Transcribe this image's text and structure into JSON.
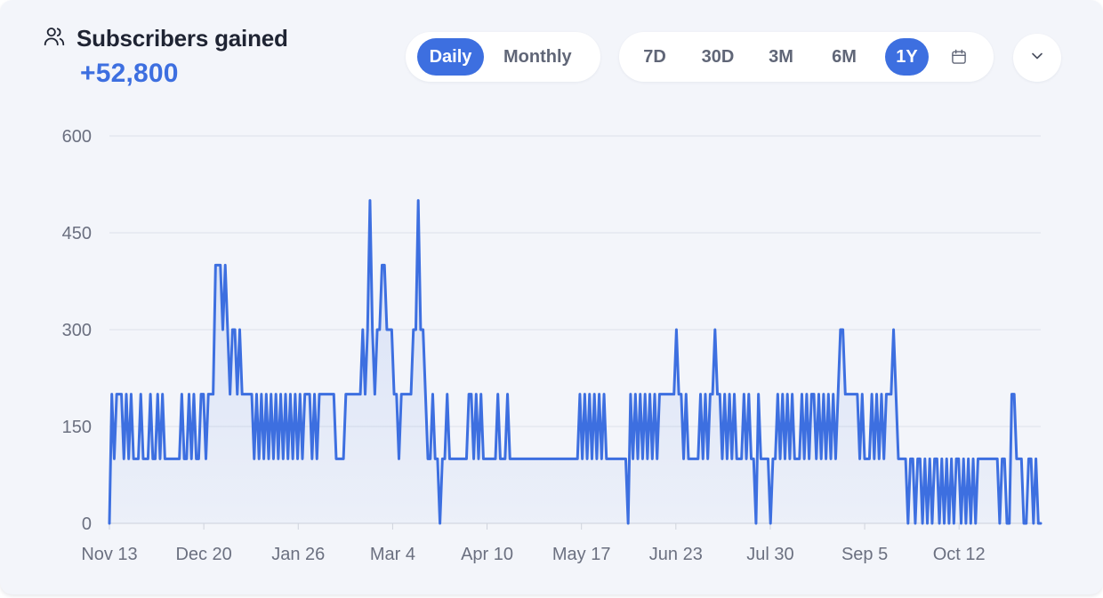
{
  "header": {
    "icon": "users-icon",
    "title": "Subscribers gained",
    "total": "+52,800"
  },
  "mode_toggle": {
    "options": [
      "Daily",
      "Monthly"
    ],
    "selected": "Daily"
  },
  "range_toggle": {
    "options": [
      "7D",
      "30D",
      "3M",
      "6M",
      "1Y"
    ],
    "selected": "1Y",
    "calendar_icon": "calendar-icon"
  },
  "menu": {
    "icon": "chevron-down-icon"
  },
  "colors": {
    "accent": "#3d6fe0",
    "grid": "#dde1ea",
    "text_muted": "#6b7080"
  },
  "chart_data": {
    "type": "area",
    "title": "Subscribers gained",
    "ylim": [
      0,
      600
    ],
    "yticks": [
      0,
      150,
      300,
      450,
      600
    ],
    "x_tick_labels": [
      "Nov 13",
      "Dec 20",
      "Jan 26",
      "Mar 4",
      "Apr 10",
      "May 17",
      "Jun 23",
      "Jul 30",
      "Sep 5",
      "Oct 12"
    ],
    "x_tick_day_index": [
      0,
      37,
      74,
      111,
      148,
      185,
      222,
      259,
      296,
      333
    ],
    "x_range_days": [
      0,
      365
    ],
    "series": [
      {
        "name": "Subscribers gained",
        "values": [
          0,
          200,
          100,
          200,
          200,
          200,
          100,
          200,
          100,
          200,
          100,
          100,
          100,
          200,
          100,
          100,
          100,
          200,
          100,
          100,
          200,
          100,
          200,
          100,
          100,
          100,
          100,
          100,
          100,
          100,
          200,
          100,
          100,
          200,
          100,
          200,
          100,
          100,
          200,
          200,
          100,
          200,
          200,
          200,
          400,
          400,
          400,
          300,
          400,
          300,
          200,
          300,
          300,
          200,
          300,
          200,
          200,
          200,
          200,
          200,
          100,
          200,
          100,
          200,
          100,
          200,
          100,
          200,
          100,
          200,
          100,
          200,
          100,
          200,
          100,
          200,
          100,
          200,
          100,
          200,
          100,
          200,
          200,
          200,
          100,
          200,
          100,
          200,
          200,
          200,
          200,
          200,
          200,
          200,
          100,
          100,
          100,
          100,
          200,
          200,
          200,
          200,
          200,
          200,
          200,
          300,
          200,
          300,
          500,
          300,
          200,
          300,
          300,
          400,
          400,
          300,
          300,
          300,
          200,
          200,
          100,
          200,
          200,
          200,
          200,
          200,
          300,
          300,
          500,
          300,
          300,
          200,
          100,
          100,
          200,
          100,
          100,
          0,
          100,
          100,
          200,
          100,
          100,
          100,
          100,
          100,
          100,
          100,
          100,
          200,
          200,
          100,
          200,
          100,
          200,
          100,
          100,
          100,
          100,
          100,
          100,
          200,
          100,
          100,
          100,
          200,
          100,
          100,
          100,
          100,
          100,
          100,
          100,
          100,
          100,
          100,
          100,
          100,
          100,
          100,
          100,
          100,
          100,
          100,
          100,
          100,
          100,
          100,
          100,
          100,
          100,
          100,
          100,
          100,
          100,
          200,
          100,
          200,
          100,
          200,
          100,
          200,
          100,
          200,
          100,
          200,
          100,
          100,
          100,
          100,
          100,
          100,
          100,
          100,
          100,
          0,
          200,
          100,
          200,
          100,
          200,
          100,
          200,
          100,
          200,
          100,
          200,
          100,
          200,
          200,
          200,
          200,
          200,
          200,
          200,
          300,
          200,
          200,
          100,
          200,
          100,
          100,
          100,
          100,
          100,
          200,
          100,
          200,
          100,
          200,
          200,
          300,
          200,
          200,
          100,
          200,
          100,
          200,
          100,
          200,
          100,
          100,
          100,
          200,
          100,
          200,
          100,
          100,
          0,
          200,
          100,
          100,
          100,
          100,
          0,
          100,
          100,
          200,
          100,
          200,
          100,
          200,
          100,
          200,
          100,
          100,
          100,
          200,
          100,
          200,
          100,
          200,
          200,
          100,
          200,
          100,
          200,
          100,
          200,
          100,
          200,
          100,
          200,
          300,
          300,
          200,
          200,
          200,
          200,
          200,
          200,
          100,
          200,
          100,
          100,
          100,
          200,
          100,
          200,
          100,
          200,
          100,
          200,
          200,
          200,
          300,
          200,
          100,
          100,
          100,
          100,
          0,
          100,
          100,
          0,
          100,
          100,
          0,
          100,
          0,
          100,
          0,
          100,
          100,
          0,
          100,
          0,
          100,
          0,
          100,
          0,
          100,
          100,
          0,
          100,
          0,
          100,
          0,
          100,
          0,
          100,
          100,
          100,
          100,
          100,
          100,
          100,
          100,
          100,
          0,
          100,
          100,
          0,
          0,
          200,
          200,
          100,
          100,
          100,
          0,
          0,
          100,
          100,
          0,
          100,
          0,
          0
        ]
      }
    ]
  }
}
